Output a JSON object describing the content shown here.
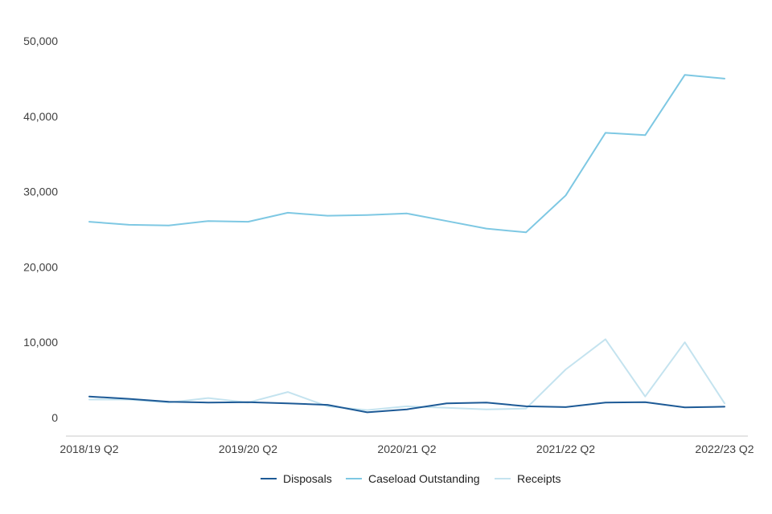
{
  "chart_data": {
    "type": "line",
    "title": "",
    "xlabel": "",
    "ylabel": "",
    "ylim": [
      0,
      50000
    ],
    "y_ticks": [
      0,
      10000,
      20000,
      30000,
      40000,
      50000
    ],
    "y_tick_labels": [
      "0",
      "10,000",
      "20,000",
      "30,000",
      "40,000",
      "50,000"
    ],
    "x_tick_labels": [
      "2018/19 Q2",
      "2019/20 Q2",
      "2020/21 Q2",
      "2021/22 Q2",
      "2022/23 Q2"
    ],
    "x_tick_index": [
      0,
      4,
      8,
      12,
      16
    ],
    "categories": [
      "2018/19 Q2",
      "2018/19 Q3",
      "2018/19 Q4",
      "2019/20 Q1",
      "2019/20 Q2",
      "2019/20 Q3",
      "2019/20 Q4",
      "2020/21 Q1",
      "2020/21 Q2",
      "2020/21 Q3",
      "2020/21 Q4",
      "2021/22 Q1",
      "2021/22 Q2",
      "2021/22 Q3",
      "2021/22 Q4",
      "2022/23 Q1",
      "2022/23 Q2"
    ],
    "grid": false,
    "legend_position": "bottom",
    "series": [
      {
        "name": "Disposals",
        "color": "#1d5a96",
        "values": [
          2800,
          2500,
          2100,
          2000,
          2050,
          1900,
          1700,
          700,
          1100,
          1900,
          2000,
          1500,
          1400,
          2000,
          2050,
          1350,
          1450
        ]
      },
      {
        "name": "Caseload Outstanding",
        "color": "#7ec8e3",
        "values": [
          26000,
          25600,
          25500,
          26100,
          26000,
          27200,
          26800,
          26900,
          27100,
          26100,
          25100,
          24600,
          29500,
          37800,
          37500,
          45500,
          45000
        ]
      },
      {
        "name": "Receipts",
        "color": "#c4e3ef",
        "values": [
          2400,
          2400,
          2000,
          2600,
          2000,
          3400,
          1500,
          1000,
          1500,
          1300,
          1100,
          1200,
          6400,
          10400,
          2800,
          10000,
          1900
        ]
      }
    ]
  }
}
